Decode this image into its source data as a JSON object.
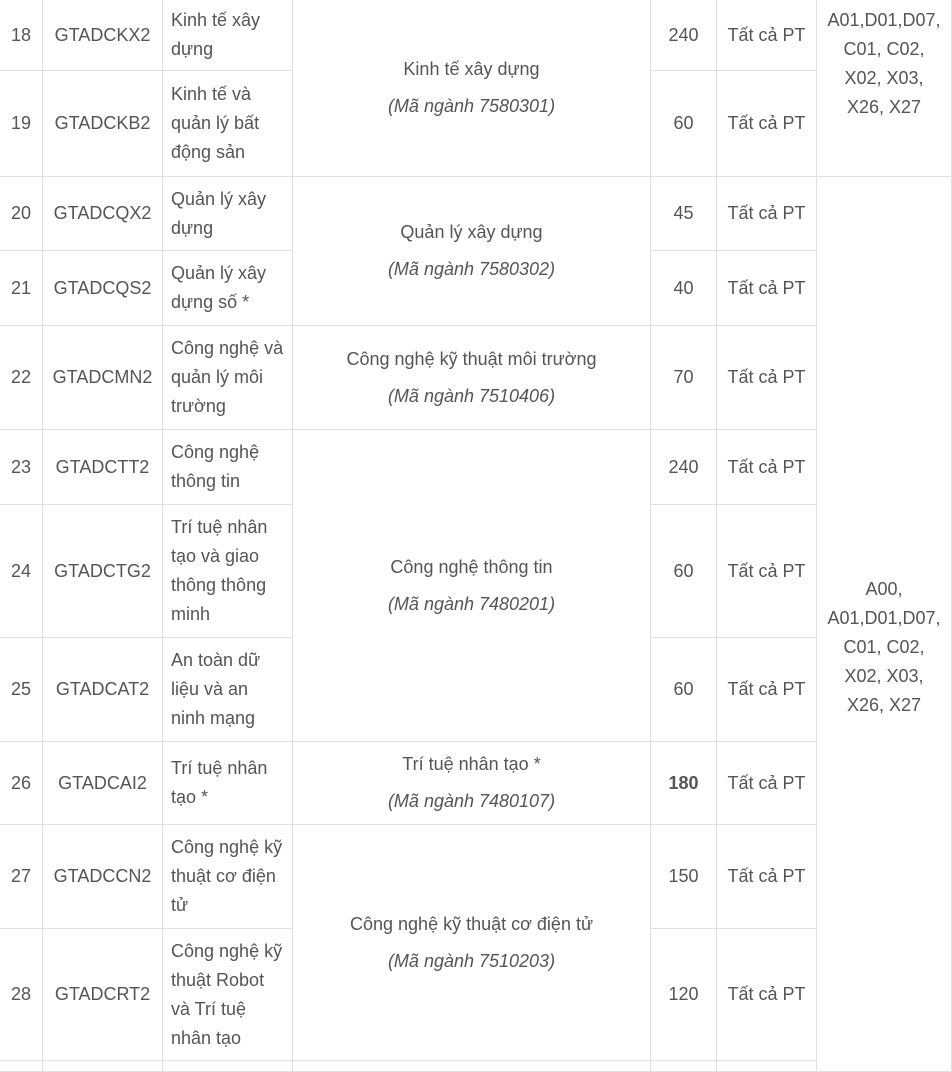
{
  "table": {
    "rows": [
      {
        "stt": "18",
        "code": "GTADCKX2",
        "name": "Kinh tế xây dựng",
        "quota": 240,
        "method": "Tất cả PT"
      },
      {
        "stt": "19",
        "code": "GTADCKB2",
        "name": "Kinh tế và quản lý bất động sản",
        "quota": 60,
        "method": "Tất cả PT"
      },
      {
        "stt": "20",
        "code": "GTADCQX2",
        "name": "Quản lý xây dựng",
        "quota": 45,
        "method": "Tất cả PT"
      },
      {
        "stt": "21",
        "code": "GTADCQS2",
        "name": "Quản lý xây dựng số *",
        "quota": 40,
        "method": "Tất cả PT"
      },
      {
        "stt": "22",
        "code": "GTADCMN2",
        "name": "Công nghệ và quản lý môi trường",
        "quota": 70,
        "method": "Tất cả PT"
      },
      {
        "stt": "23",
        "code": "GTADCTT2",
        "name": "Công nghệ thông tin",
        "quota": 240,
        "method": "Tất cả PT"
      },
      {
        "stt": "24",
        "code": "GTADCTG2",
        "name": "Trí tuệ nhân tạo và giao thông thông minh",
        "quota": 60,
        "method": "Tất cả PT"
      },
      {
        "stt": "25",
        "code": "GTADCAT2",
        "name": "An toàn dữ liệu và an ninh mạng",
        "quota": 60,
        "method": "Tất cả PT"
      },
      {
        "stt": "26",
        "code": "GTADCAI2",
        "name": "Trí tuệ nhân tạo *",
        "quota": 180,
        "method": "Tất cả PT"
      },
      {
        "stt": "27",
        "code": "GTADCCN2",
        "name": "Công nghệ kỹ thuật cơ điện tử",
        "quota": 150,
        "method": "Tất cả PT"
      },
      {
        "stt": "28",
        "code": "GTADCRT2",
        "name": "Công nghệ kỹ thuật Robot và Trí tuệ nhân tạo",
        "quota": 120,
        "method": "Tất cả PT"
      }
    ],
    "majors": [
      {
        "name": "Kinh tế xây dựng",
        "code": "(Mã ngành 7580301)"
      },
      {
        "name": "Quản lý xây dựng",
        "code": "(Mã ngành 7580302)"
      },
      {
        "name": "Công nghệ kỹ thuật môi trường",
        "code": "(Mã ngành 7510406)"
      },
      {
        "name": "Công nghệ thông tin",
        "code": "(Mã ngành 7480201)"
      },
      {
        "name": "Trí tuệ nhân tạo *",
        "code": "(Mã ngành 7480107)"
      },
      {
        "name": "Công nghệ kỹ thuật cơ điện tử",
        "code": "(Mã ngành 7510203)"
      }
    ],
    "combos": [
      [
        "A01,D01,D07,",
        "C01, C02,",
        "X02, X03,",
        "X26, X27"
      ],
      [
        "A00,",
        "A01,D01,D07,",
        "C01, C02,",
        "X02, X03,",
        "X26, X27"
      ]
    ]
  }
}
